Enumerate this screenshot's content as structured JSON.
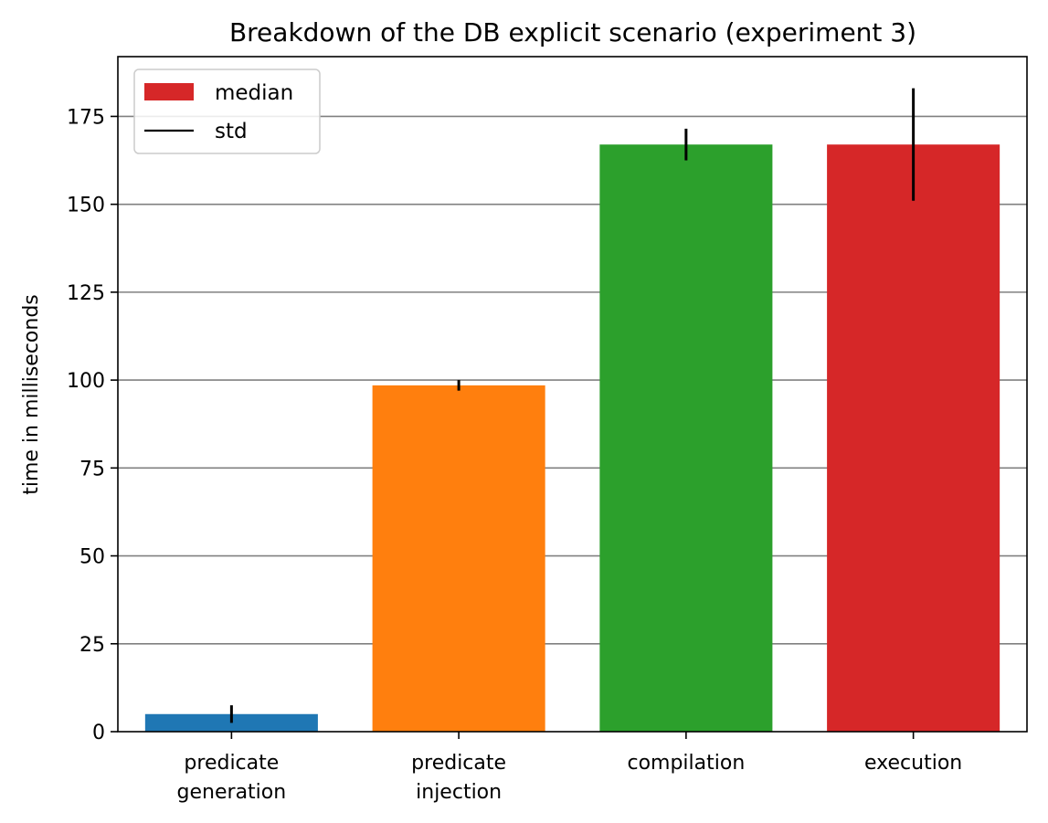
{
  "chart_data": {
    "type": "bar",
    "title": "Breakdown of the DB explicit scenario (experiment 3)",
    "xlabel": "",
    "ylabel": "time in milliseconds",
    "ylim": [
      0,
      192
    ],
    "yticks": [
      0,
      25,
      50,
      75,
      100,
      125,
      150,
      175
    ],
    "grid": "horizontal",
    "legend_position": "top-left",
    "categories": [
      [
        "predicate",
        "generation"
      ],
      [
        "predicate",
        "injection"
      ],
      [
        "compilation"
      ],
      [
        "execution"
      ]
    ],
    "values": [
      5,
      98.5,
      167,
      167
    ],
    "std": [
      2.5,
      1.5,
      4.5,
      16
    ],
    "colors": [
      "#1f77b4",
      "#ff7f0e",
      "#2ca02c",
      "#d62728"
    ],
    "legend": [
      {
        "label": "median",
        "kind": "patch",
        "color": "#d62728"
      },
      {
        "label": "std",
        "kind": "line",
        "color": "#000000"
      }
    ]
  }
}
